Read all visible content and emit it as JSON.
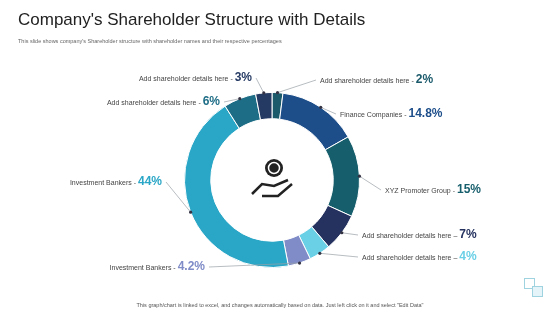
{
  "chart_data": {
    "type": "doughnut",
    "title": "Company's Shareholder Structure with Details",
    "subtitle": "This slide shows company's Shareholder structure with shareholder names and their respective percentages",
    "annotations": [
      "This graph/chart is linked to excel, and changes automatically based on data. Just left click on it and select \"Edit Data\""
    ],
    "categories": [
      "Add shareholder details here -",
      "Finance Companies -",
      "XYZ Promoter Group -",
      "Add shareholder details here –",
      "Add shareholder details here –",
      "Investment Bankers -",
      "Investment Bankers -",
      "Add shareholder details here -",
      "Add shareholder details here -"
    ],
    "values": [
      2,
      14.8,
      15,
      7,
      4,
      4.2,
      44,
      6,
      3
    ],
    "value_labels": [
      "2%",
      "14.8%",
      "15%",
      "7%",
      "4%",
      "4.2%",
      "44%",
      "6%",
      "3%"
    ],
    "colors": [
      "#1b5a6b",
      "#1d4e8a",
      "#165e6c",
      "#25325f",
      "#6ad0e6",
      "#7f8cc7",
      "#2aa6c6",
      "#1e6d86",
      "#253a63"
    ],
    "data_labels": true
  }
}
